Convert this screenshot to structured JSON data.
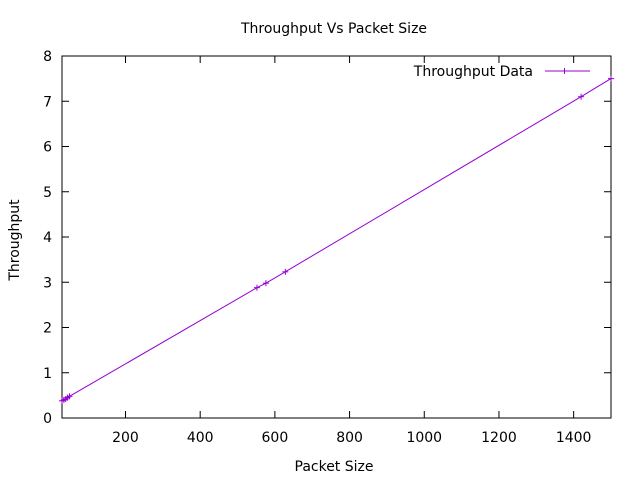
{
  "chart_data": {
    "type": "line",
    "title": "Throughput Vs Packet Size",
    "xlabel": "Packet Size",
    "ylabel": "Throughput",
    "xlim": [
      30,
      1500
    ],
    "ylim": [
      0,
      8
    ],
    "xticks": [
      200,
      400,
      600,
      800,
      1000,
      1200,
      1400
    ],
    "yticks": [
      0,
      1,
      2,
      3,
      4,
      5,
      6,
      7,
      8
    ],
    "grid": false,
    "legend": "top-right",
    "series": [
      {
        "name": "Throughput Data",
        "color": "#9400d3",
        "marker": "plus",
        "x": [
          30,
          35,
          40,
          45,
          50,
          552,
          576,
          628,
          1420,
          1500
        ],
        "y": [
          0.38,
          0.4,
          0.42,
          0.45,
          0.48,
          2.88,
          2.98,
          3.23,
          7.1,
          7.5
        ]
      }
    ]
  }
}
